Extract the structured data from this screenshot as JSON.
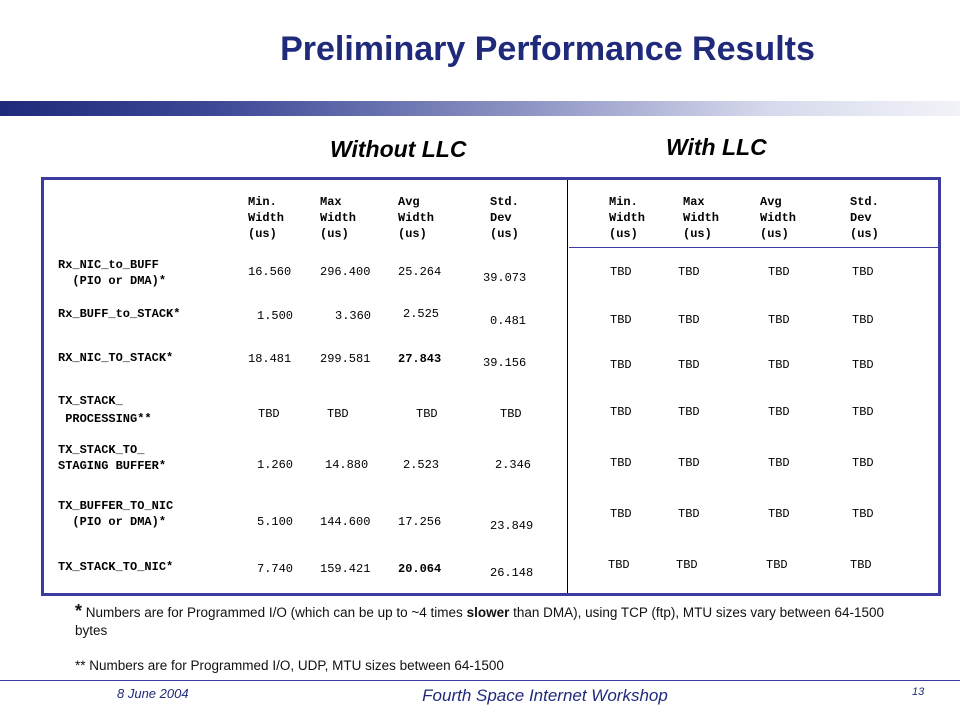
{
  "title": "Preliminary Performance Results",
  "groups": {
    "without": "Without LLC",
    "with": "With LLC"
  },
  "headers": [
    [
      "Min.",
      "Width",
      "(us)"
    ],
    [
      "Max",
      "Width",
      "(us)"
    ],
    [
      "Avg",
      "Width",
      "(us)"
    ],
    [
      "Std.",
      "Dev",
      "(us)"
    ]
  ],
  "rows": [
    {
      "label": [
        "Rx_NIC_to_BUFF",
        "  (PIO or DMA)*"
      ],
      "without": [
        "16.560",
        "296.400",
        "25.264",
        "39.073"
      ],
      "with": [
        "TBD",
        "TBD",
        "TBD",
        "TBD"
      ]
    },
    {
      "label": [
        "Rx_BUFF_to_STACK*"
      ],
      "without": [
        "1.500",
        "3.360",
        "2.525",
        "0.481"
      ],
      "with": [
        "TBD",
        "TBD",
        "TBD",
        "TBD"
      ]
    },
    {
      "label": [
        "RX_NIC_TO_STACK*"
      ],
      "without": [
        "18.481",
        "299.581",
        "27.843",
        "39.156"
      ],
      "with": [
        "TBD",
        "TBD",
        "TBD",
        "TBD"
      ]
    },
    {
      "label": [
        "TX_STACK_",
        " PROCESSING**"
      ],
      "without": [
        "TBD",
        "TBD",
        "TBD",
        "TBD"
      ],
      "with": [
        "TBD",
        "TBD",
        "TBD",
        "TBD"
      ]
    },
    {
      "label": [
        "TX_STACK_TO_",
        "STAGING BUFFER*"
      ],
      "without": [
        "1.260",
        "14.880",
        "2.523",
        "2.346"
      ],
      "with": [
        "TBD",
        "TBD",
        "TBD",
        "TBD"
      ]
    },
    {
      "label": [
        "TX_BUFFER_TO_NIC",
        "  (PIO or DMA)*"
      ],
      "without": [
        "5.100",
        "144.600",
        "17.256",
        "23.849"
      ],
      "with": [
        "TBD",
        "TBD",
        "TBD",
        "TBD"
      ]
    },
    {
      "label": [
        "TX_STACK_TO_NIC*"
      ],
      "without": [
        "7.740",
        "159.421",
        "20.064",
        "26.148"
      ],
      "with": [
        "TBD",
        "TBD",
        "TBD",
        "TBD"
      ]
    }
  ],
  "notes": {
    "n1_star": "*",
    "n1_pre": " Numbers are for Programmed I/O (which can be up to ~4 times ",
    "n1_bold": "slower",
    "n1_post": "  than DMA), using TCP (ftp), MTU sizes vary between 64-1500 bytes",
    "n2": "** Numbers are for Programmed I/O,  UDP, MTU  sizes between 64-1500"
  },
  "footer": {
    "date": "8 June 2004",
    "center": "Fourth Space Internet Workshop",
    "page": "13"
  }
}
